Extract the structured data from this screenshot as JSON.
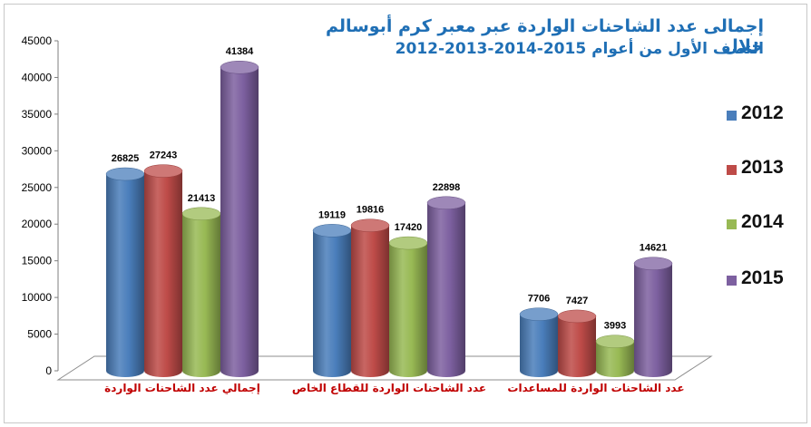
{
  "title": {
    "line1": "إجمالى عدد الشاحنات الواردة عبر معبر كرم أبوسالم خلال",
    "line2": "النصف الأول من أعوام 2015-2014-2013-2012"
  },
  "colors": {
    "2012": "#4a7ebb",
    "2013": "#be4b48",
    "2014": "#98b954",
    "2015": "#7d60a0",
    "category_label": "#c00000",
    "title": "#1f6fb5"
  },
  "chart_data": {
    "type": "bar",
    "categories": [
      "إجمالي عدد الشاحنات الواردة",
      "عدد الشاحنات الواردة للقطاع الخاص",
      "عدد الشاحنات الواردة للمساعدات"
    ],
    "series": [
      {
        "name": "2012",
        "values": [
          26825,
          19119,
          7706
        ]
      },
      {
        "name": "2013",
        "values": [
          27243,
          19816,
          7427
        ]
      },
      {
        "name": "2014",
        "values": [
          21413,
          17420,
          3993
        ]
      },
      {
        "name": "2015",
        "values": [
          41384,
          22898,
          14621
        ]
      }
    ],
    "yticks": [
      0,
      5000,
      10000,
      15000,
      20000,
      25000,
      30000,
      35000,
      40000,
      45000
    ],
    "ylim": [
      0,
      45000
    ],
    "legend_position": "right",
    "grid": false
  }
}
